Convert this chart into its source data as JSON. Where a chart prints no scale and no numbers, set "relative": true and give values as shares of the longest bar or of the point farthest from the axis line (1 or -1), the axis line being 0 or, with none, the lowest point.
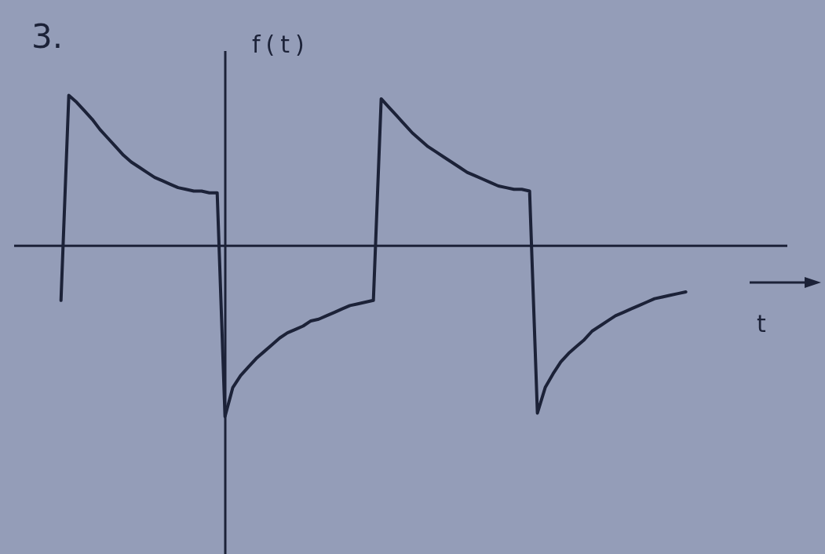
{
  "chart_data": {
    "type": "line",
    "title": "3.",
    "xlabel": "t",
    "ylabel": "f(t)",
    "relative": true,
    "color": "#1c2238",
    "categories": [
      null,
      null,
      null,
      null,
      null,
      null,
      null,
      null,
      null,
      null,
      null,
      null,
      null,
      null,
      null,
      null,
      null,
      null,
      null,
      null,
      null,
      null,
      null,
      null,
      null,
      null,
      null,
      null,
      null,
      null,
      null,
      null,
      null,
      null,
      null,
      null,
      null,
      null,
      null,
      null,
      null,
      null,
      null,
      null,
      null,
      null,
      null,
      null,
      null,
      null,
      null,
      null,
      null,
      null,
      null,
      null,
      null,
      null,
      null,
      null,
      null,
      null,
      null,
      null,
      null,
      null,
      null,
      null,
      null,
      null,
      null,
      null,
      null,
      null,
      null,
      null,
      null,
      null,
      null,
      null,
      null,
      null,
      null,
      null,
      null,
      null,
      null,
      null,
      null,
      null,
      null,
      null,
      null,
      null,
      null,
      null,
      null,
      null,
      null,
      null
    ],
    "values": [
      null,
      null,
      null,
      null,
      null,
      null,
      -0.32,
      0.88,
      0.84,
      0.79,
      0.74,
      0.68,
      0.63,
      0.58,
      0.53,
      0.49,
      0.46,
      0.43,
      0.4,
      0.38,
      0.36,
      0.34,
      0.33,
      0.32,
      0.32,
      0.31,
      0.31,
      -1,
      -0.83,
      -0.76,
      -0.71,
      -0.66,
      -0.62,
      -0.58,
      -0.54,
      -0.51,
      -0.49,
      -0.47,
      -0.44,
      -0.43,
      -0.41,
      -0.39,
      -0.37,
      -0.35,
      -0.34,
      -0.33,
      -0.32,
      0.86,
      0.81,
      0.76,
      0.71,
      0.66,
      0.62,
      0.58,
      0.55,
      0.52,
      0.49,
      0.46,
      0.43,
      0.41,
      0.39,
      0.37,
      0.35,
      0.34,
      0.33,
      0.33,
      0.32,
      -0.98,
      -0.83,
      -0.75,
      -0.68,
      -0.63,
      -0.59,
      -0.55,
      -0.5,
      -0.47,
      -0.44,
      -0.41,
      -0.39,
      -0.37,
      -0.35,
      -0.33,
      -0.31,
      -0.3,
      -0.29,
      -0.28,
      -0.27,
      null,
      null,
      null,
      null,
      null,
      null,
      null,
      null,
      null,
      null,
      null,
      null,
      null
    ]
  }
}
